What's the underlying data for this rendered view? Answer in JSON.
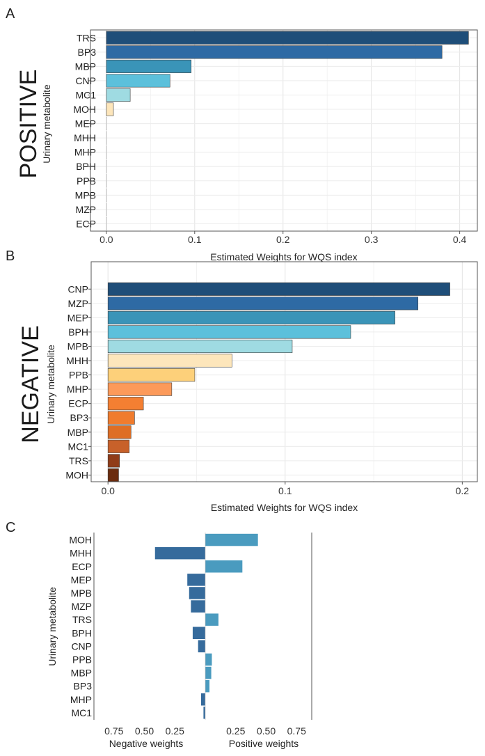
{
  "chart_data": [
    {
      "panel": "A",
      "type": "bar",
      "orientation": "horizontal",
      "side_label": "POSITIVE",
      "ylabel": "Urinary metabolite",
      "xlabel": "Estimated Weights for WQS index",
      "xlim": [
        -0.018,
        0.42
      ],
      "xticks": [
        "0.0",
        "0.1",
        "0.2",
        "0.3",
        "0.4"
      ],
      "xtick_values": [
        0.0,
        0.1,
        0.2,
        0.3,
        0.4
      ],
      "grid": true,
      "categories": [
        "TRS",
        "BP3",
        "MBP",
        "CNP",
        "MC1",
        "MOH",
        "MEP",
        "MHH",
        "MHP",
        "BPH",
        "PPB",
        "MPB",
        "MZP",
        "ECP"
      ],
      "values": [
        0.41,
        0.38,
        0.096,
        0.072,
        0.027,
        0.008,
        0,
        0,
        0,
        0,
        0,
        0,
        0,
        0
      ],
      "colors": [
        "#1f4e79",
        "#2e6aa4",
        "#3a94b8",
        "#5cc0db",
        "#9fdbe2",
        "#fde6bb",
        "#f4f4f4",
        "#f4f4f4",
        "#f4f4f4",
        "#f4f4f4",
        "#f4f4f4",
        "#f4f4f4",
        "#f4f4f4",
        "#f4f4f4"
      ]
    },
    {
      "panel": "B",
      "type": "bar",
      "orientation": "horizontal",
      "side_label": "NEGATIVE",
      "ylabel": "Urinary metabolite",
      "xlabel": "Estimated Weights for WQS index",
      "xlim": [
        -0.0095,
        0.2085
      ],
      "xticks": [
        "0.0",
        "0.1",
        "0.2"
      ],
      "xtick_values": [
        0.0,
        0.1,
        0.2
      ],
      "grid": true,
      "categories": [
        "CNP",
        "MZP",
        "MEP",
        "BPH",
        "MPB",
        "MHH",
        "PPB",
        "MHP",
        "ECP",
        "BP3",
        "MBP",
        "MC1",
        "TRS",
        "MOH"
      ],
      "values": [
        0.193,
        0.175,
        0.162,
        0.137,
        0.104,
        0.07,
        0.049,
        0.036,
        0.02,
        0.015,
        0.013,
        0.012,
        0.0065,
        0.006
      ],
      "colors": [
        "#1f4e79",
        "#2e6aa4",
        "#3a94b8",
        "#5cc0db",
        "#9fdbe2",
        "#fde6bb",
        "#fdd07a",
        "#fc9a5a",
        "#f47f32",
        "#f07c2e",
        "#de6e25",
        "#c8612a",
        "#903c18",
        "#6b2c0f"
      ]
    },
    {
      "panel": "C",
      "type": "bar",
      "orientation": "horizontal-diverging",
      "ylabel": "Urinary metabolite",
      "xlim": [
        -1.0,
        1.0
      ],
      "negative_ticks": [
        "0.75",
        "0.50",
        "0.25"
      ],
      "negative_tick_values": [
        -0.75,
        -0.5,
        -0.25
      ],
      "positive_ticks": [
        "0.25",
        "0.50",
        "0.75"
      ],
      "positive_tick_values": [
        0.25,
        0.5,
        0.75
      ],
      "negative_label": "Negative weights",
      "positive_label": "Positive weights",
      "grid": false,
      "categories": [
        "MOH",
        "MHH",
        "ECP",
        "MEP",
        "MPB",
        "MZP",
        "TRS",
        "BPH",
        "CNP",
        "PPB",
        "MBP",
        "BP3",
        "MHP",
        "MC1"
      ],
      "values": [
        0.44,
        -0.42,
        0.31,
        -0.15,
        -0.135,
        -0.12,
        0.11,
        -0.105,
        -0.06,
        0.055,
        0.05,
        0.035,
        -0.035,
        -0.015
      ],
      "positive_color": "#4a9bbf",
      "negative_color": "#366b9c"
    }
  ]
}
